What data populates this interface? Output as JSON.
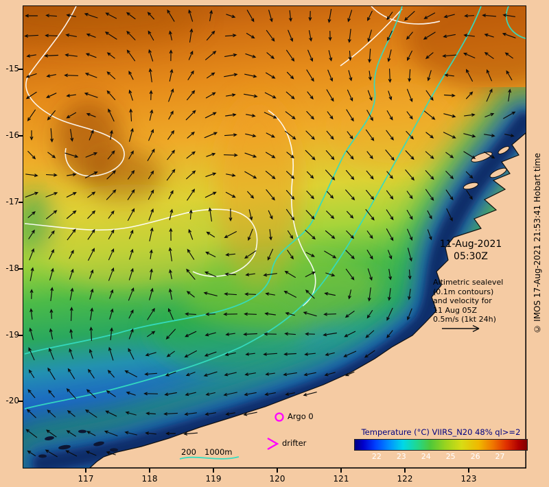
{
  "annotations": {
    "datetime": {
      "line1": "11-Aug-2021",
      "line2": "05:30Z"
    },
    "note": {
      "lines": [
        "Altimetric sealevel",
        "(0.1m contours)",
        "and velocity for",
        "11 Aug 05Z",
        "0.5m/s (1kt 24h)"
      ]
    }
  },
  "legend": {
    "argo": "Argo 0",
    "drifter": "drifter",
    "isobath_200": "200",
    "isobath_1000": "1000m"
  },
  "colorbar": {
    "title": "Temperature (°C) VIIRS_N20 48% ql>=2",
    "ticks": [
      "22",
      "23",
      "24",
      "25",
      "26",
      "27"
    ]
  },
  "credit": "© IMOS 17-Aug-2021 21:53:41 Hobart time",
  "axes": {
    "lat": [
      "-15",
      "-16",
      "-17",
      "-18",
      "-19",
      "-20"
    ],
    "lon": [
      "117",
      "118",
      "119",
      "120",
      "121",
      "122",
      "123"
    ]
  },
  "colors": {
    "land": "#f5cba3",
    "sealevel_contour": "#ffffff",
    "isobath_contour": "#35dcc0",
    "marker_magenta": "#ff00ff",
    "colorbar_title": "#000080",
    "vector": "#0a0a0a"
  },
  "chart_data": {
    "type": "heatmap",
    "title": "Temperature (°C) VIIRS_N20 48% ql>=2",
    "datetime": "11-Aug-2021 05:30Z",
    "lon_ticks": [
      117,
      118,
      119,
      120,
      121,
      122,
      123
    ],
    "lat_ticks": [
      -15,
      -16,
      -17,
      -18,
      -19,
      -20
    ],
    "lon_range": [
      116.0,
      123.9
    ],
    "lat_range": [
      -21.0,
      -14.1
    ],
    "colorbar_ticks_c": [
      22,
      23,
      24,
      25,
      26,
      27
    ],
    "colorbar_range_c": [
      21.5,
      27.5
    ],
    "overlays": [
      "altimetric sea level contours every 0.1 m (white)",
      "surface velocity vectors, scale 0.5 m/s (1kt 24h)",
      "isobaths 200 m and 1000 m (cyan)",
      "Argo float position (magenta circle)",
      "drifter position (magenta arrow)"
    ],
    "sst_pattern": "warm 26-27°C water offshore to the north, cooling southward to 22-23°C over the NW Australian shelf, coldest water hugging the coast"
  }
}
